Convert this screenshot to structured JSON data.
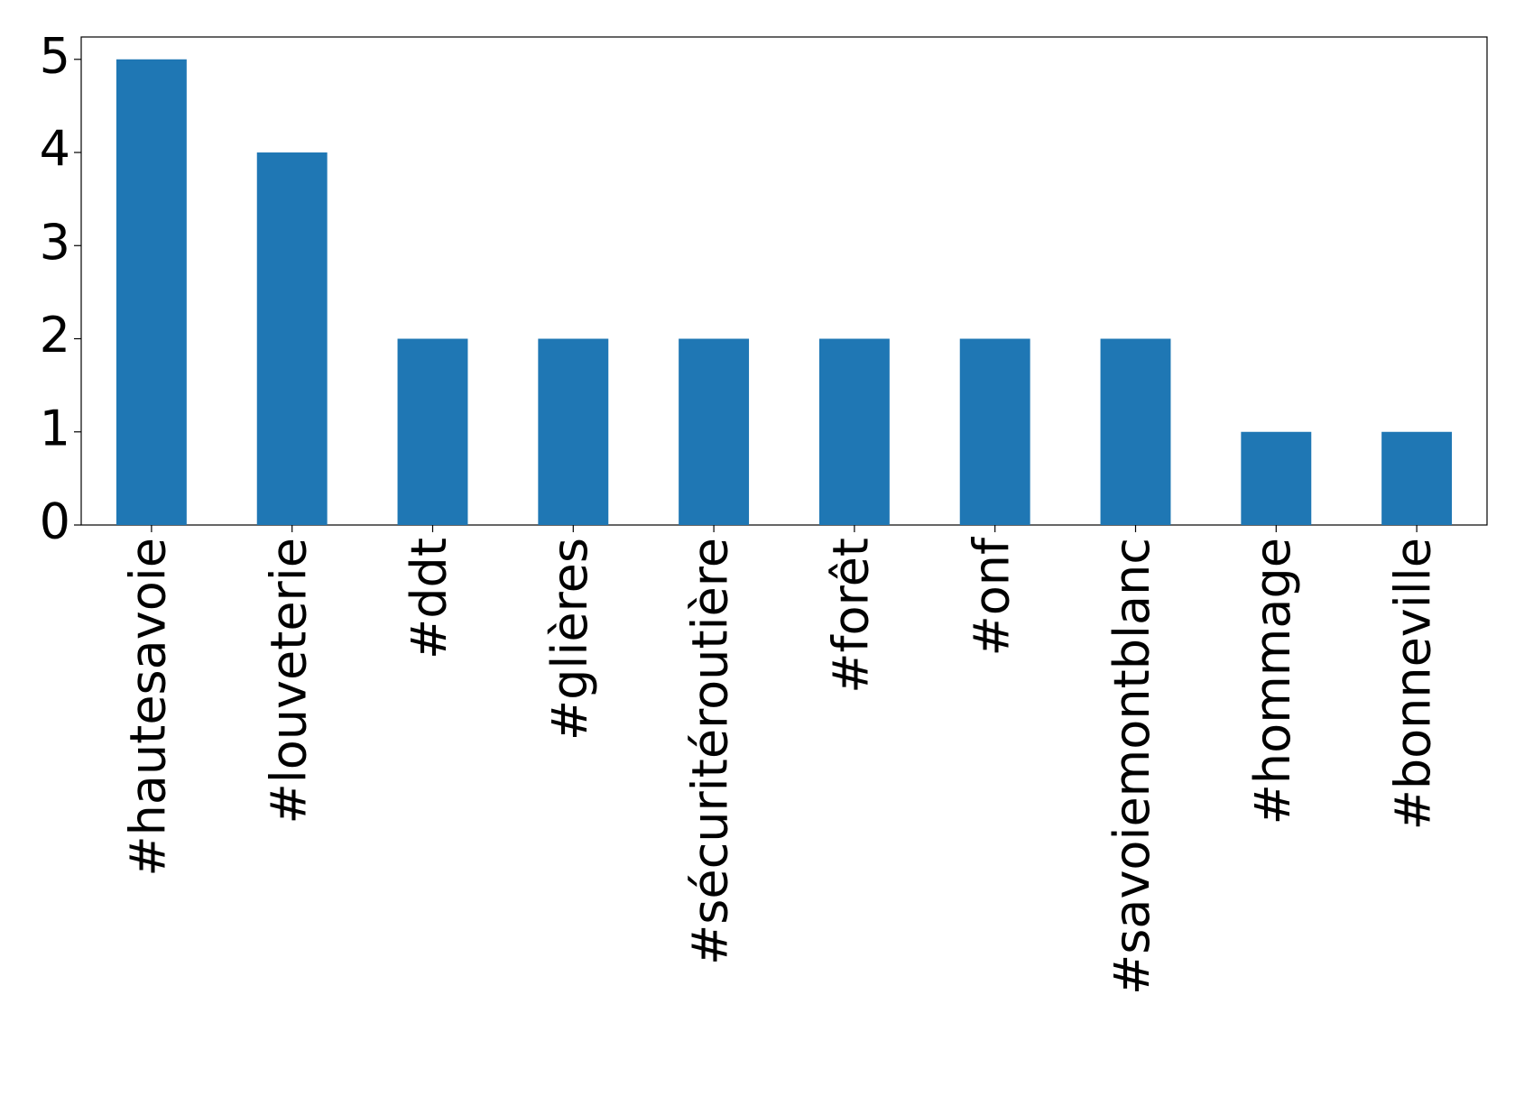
{
  "chart_data": {
    "type": "bar",
    "categories": [
      "#hautesavoie",
      "#louveterie",
      "#ddt",
      "#glières",
      "#sécuritéroutière",
      "#forêt",
      "#onf",
      "#savoiemontblanc",
      "#hommage",
      "#bonneville"
    ],
    "values": [
      5,
      4,
      2,
      2,
      2,
      2,
      2,
      2,
      1,
      1
    ],
    "color": "#1f77b4",
    "ylim": [
      0,
      5.24
    ],
    "yticks": [
      0,
      1,
      2,
      3,
      4,
      5
    ],
    "grid": false
  }
}
